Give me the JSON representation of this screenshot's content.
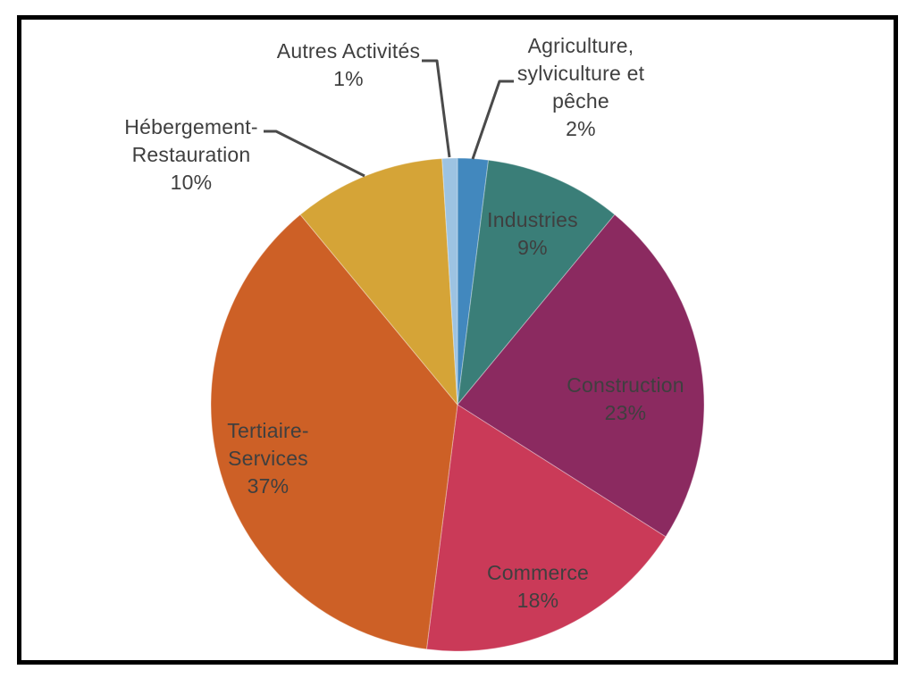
{
  "chart_data": {
    "type": "pie",
    "title": "",
    "legend": "none",
    "start_angle_deg": 0,
    "direction": "clockwise",
    "unit": "%",
    "total": 100,
    "slices": [
      {
        "label": "Agriculture, sylviculture et pêche",
        "value": 2,
        "pct": "2%",
        "color": "#4288BE",
        "label_placement": "outside"
      },
      {
        "label": "Industries",
        "value": 9,
        "pct": "9%",
        "color": "#3A7E78",
        "label_placement": "inside"
      },
      {
        "label": "Construction",
        "value": 23,
        "pct": "23%",
        "color": "#8B2A60",
        "label_placement": "inside"
      },
      {
        "label": "Commerce",
        "value": 18,
        "pct": "18%",
        "color": "#CA3A58",
        "label_placement": "inside"
      },
      {
        "label": "Tertiaire-Services",
        "value": 37,
        "pct": "37%",
        "color": "#CD6026",
        "label_placement": "inside"
      },
      {
        "label": "Hébergement-Restauration",
        "value": 10,
        "pct": "10%",
        "color": "#D5A437",
        "label_placement": "outside"
      },
      {
        "label": "Autres Activités",
        "value": 1,
        "pct": "1%",
        "color": "#9DC3E2",
        "label_placement": "outside"
      }
    ]
  },
  "colors": {
    "leader_line": "#4A4A4A",
    "label_text": "#3F3F3F",
    "frame_border": "#000000",
    "background": "#FFFFFF"
  }
}
